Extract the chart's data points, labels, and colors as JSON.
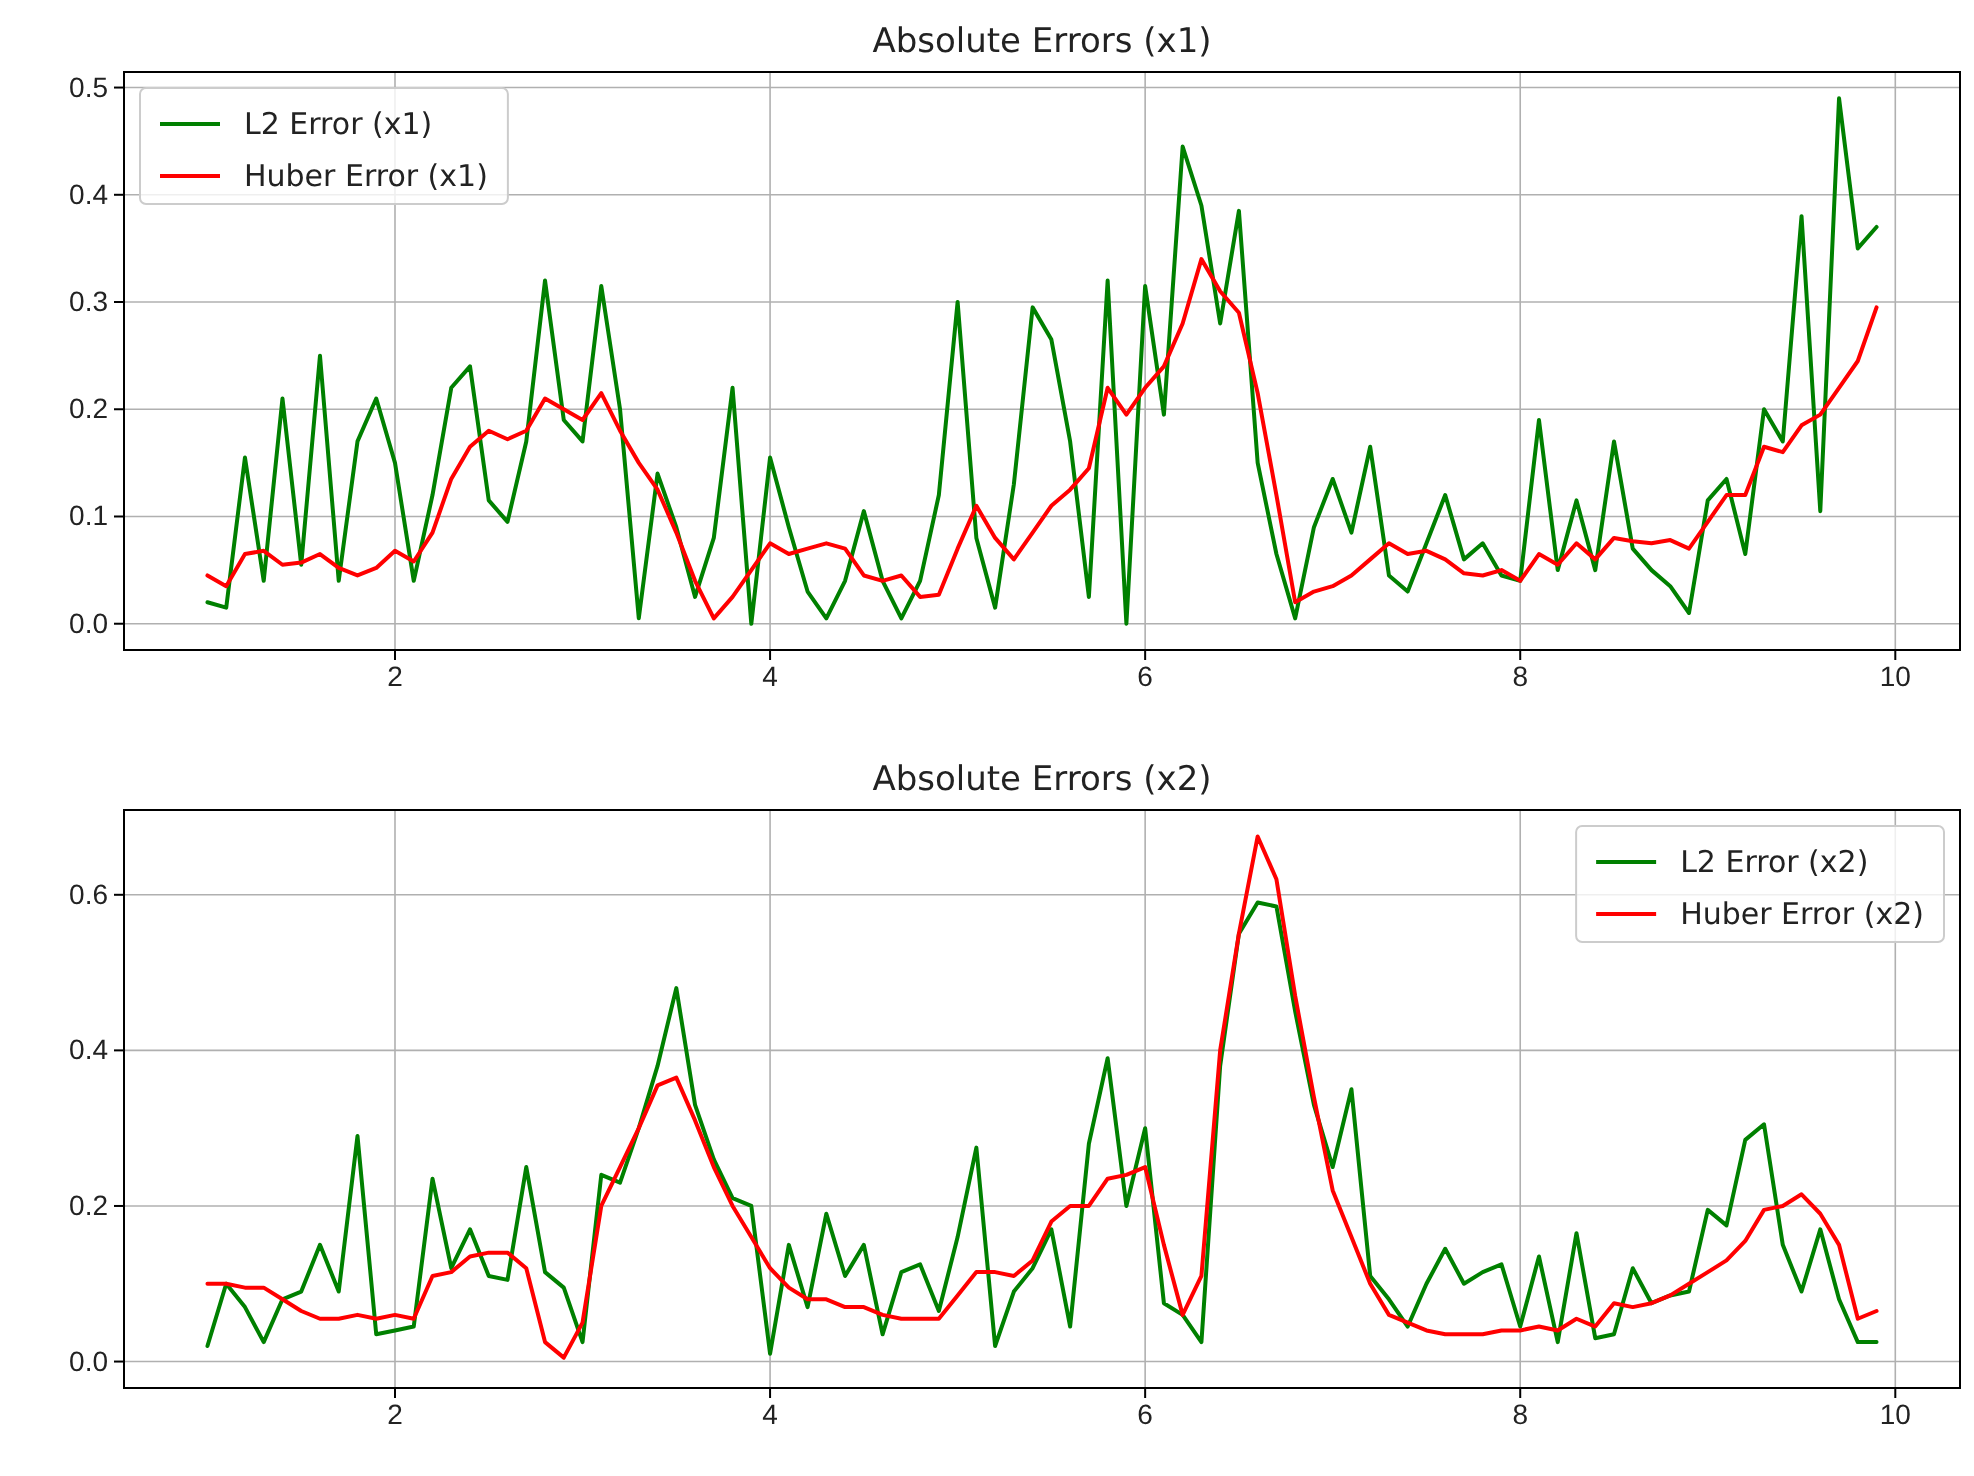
{
  "chart_data": [
    {
      "type": "line",
      "title": "Absolute Errors (x1)",
      "x": [
        1.0,
        1.1,
        1.2,
        1.3,
        1.4,
        1.5,
        1.6,
        1.7,
        1.8,
        1.9,
        2.0,
        2.1,
        2.2,
        2.3,
        2.4,
        2.5,
        2.6,
        2.7,
        2.8,
        2.9,
        3.0,
        3.1,
        3.2,
        3.3,
        3.4,
        3.5,
        3.6,
        3.7,
        3.8,
        3.9,
        4.0,
        4.1,
        4.2,
        4.3,
        4.4,
        4.5,
        4.6,
        4.7,
        4.8,
        4.9,
        5.0,
        5.1,
        5.2,
        5.3,
        5.4,
        5.5,
        5.6,
        5.7,
        5.8,
        5.9,
        6.0,
        6.1,
        6.2,
        6.3,
        6.4,
        6.5,
        6.6,
        6.7,
        6.8,
        6.9,
        7.0,
        7.1,
        7.2,
        7.3,
        7.4,
        7.5,
        7.6,
        7.7,
        7.8,
        7.9,
        8.0,
        8.1,
        8.2,
        8.3,
        8.4,
        8.5,
        8.6,
        8.7,
        8.8,
        8.9,
        9.0,
        9.1,
        9.2,
        9.3,
        9.4,
        9.5,
        9.6,
        9.7,
        9.8,
        9.9
      ],
      "series": [
        {
          "name": "L2 Error (x1)",
          "color": "#008000",
          "values": [
            0.02,
            0.015,
            0.155,
            0.04,
            0.21,
            0.055,
            0.25,
            0.04,
            0.17,
            0.21,
            0.15,
            0.04,
            0.12,
            0.22,
            0.24,
            0.115,
            0.095,
            0.17,
            0.32,
            0.19,
            0.17,
            0.315,
            0.2,
            0.005,
            0.14,
            0.09,
            0.025,
            0.08,
            0.22,
            0.0,
            0.155,
            0.09,
            0.03,
            0.005,
            0.04,
            0.105,
            0.04,
            0.005,
            0.04,
            0.12,
            0.3,
            0.08,
            0.015,
            0.13,
            0.295,
            0.265,
            0.17,
            0.025,
            0.32,
            0.0,
            0.315,
            0.195,
            0.445,
            0.39,
            0.28,
            0.385,
            0.15,
            0.065,
            0.005,
            0.09,
            0.135,
            0.085,
            0.165,
            0.045,
            0.03,
            0.075,
            0.12,
            0.06,
            0.075,
            0.045,
            0.04,
            0.19,
            0.05,
            0.115,
            0.05,
            0.17,
            0.07,
            0.05,
            0.035,
            0.01,
            0.115,
            0.135,
            0.065,
            0.2,
            0.17,
            0.38,
            0.105,
            0.49,
            0.35,
            0.37
          ]
        },
        {
          "name": "Huber Error (x1)",
          "color": "#ff0000",
          "values": [
            0.045,
            0.035,
            0.065,
            0.068,
            0.055,
            0.057,
            0.065,
            0.052,
            0.045,
            0.052,
            0.068,
            0.058,
            0.085,
            0.135,
            0.165,
            0.18,
            0.172,
            0.18,
            0.21,
            0.2,
            0.19,
            0.215,
            0.18,
            0.15,
            0.125,
            0.085,
            0.04,
            0.005,
            0.025,
            0.05,
            0.075,
            0.065,
            0.07,
            0.075,
            0.07,
            0.045,
            0.04,
            0.045,
            0.025,
            0.027,
            0.07,
            0.11,
            0.08,
            0.06,
            0.085,
            0.11,
            0.125,
            0.145,
            0.22,
            0.195,
            0.22,
            0.24,
            0.28,
            0.34,
            0.31,
            0.29,
            0.215,
            0.12,
            0.02,
            0.03,
            0.035,
            0.045,
            0.06,
            0.075,
            0.065,
            0.068,
            0.06,
            0.047,
            0.045,
            0.05,
            0.04,
            0.065,
            0.055,
            0.075,
            0.06,
            0.08,
            0.077,
            0.075,
            0.078,
            0.07,
            0.095,
            0.12,
            0.12,
            0.165,
            0.16,
            0.185,
            0.195,
            0.22,
            0.245,
            0.295
          ]
        }
      ],
      "xlim": [
        0.555,
        10.345
      ],
      "xticks": [
        2,
        4,
        6,
        8,
        10
      ],
      "ylim": [
        -0.0245,
        0.5145
      ],
      "yticks": [
        {
          "value": 0,
          "label": "0.0"
        },
        0.1,
        0.2,
        0.3,
        0.4,
        0.5
      ],
      "grid": true,
      "legend": "top left"
    },
    {
      "type": "line",
      "title": "Absolute Errors (x2)",
      "x": [
        1.0,
        1.1,
        1.2,
        1.3,
        1.4,
        1.5,
        1.6,
        1.7,
        1.8,
        1.9,
        2.0,
        2.1,
        2.2,
        2.3,
        2.4,
        2.5,
        2.6,
        2.7,
        2.8,
        2.9,
        3.0,
        3.1,
        3.2,
        3.3,
        3.4,
        3.5,
        3.6,
        3.7,
        3.8,
        3.9,
        4.0,
        4.1,
        4.2,
        4.3,
        4.4,
        4.5,
        4.6,
        4.7,
        4.8,
        4.9,
        5.0,
        5.1,
        5.2,
        5.3,
        5.4,
        5.5,
        5.6,
        5.7,
        5.8,
        5.9,
        6.0,
        6.1,
        6.2,
        6.3,
        6.4,
        6.5,
        6.6,
        6.7,
        6.8,
        6.9,
        7.0,
        7.1,
        7.2,
        7.3,
        7.4,
        7.5,
        7.6,
        7.7,
        7.8,
        7.9,
        8.0,
        8.1,
        8.2,
        8.3,
        8.4,
        8.5,
        8.6,
        8.7,
        8.8,
        8.9,
        9.0,
        9.1,
        9.2,
        9.3,
        9.4,
        9.5,
        9.6,
        9.7,
        9.8,
        9.9
      ],
      "series": [
        {
          "name": "L2 Error (x2)",
          "color": "#008000",
          "values": [
            0.02,
            0.1,
            0.07,
            0.025,
            0.08,
            0.09,
            0.15,
            0.09,
            0.29,
            0.035,
            0.04,
            0.045,
            0.235,
            0.12,
            0.17,
            0.11,
            0.105,
            0.25,
            0.115,
            0.095,
            0.025,
            0.24,
            0.23,
            0.3,
            0.38,
            0.48,
            0.33,
            0.26,
            0.21,
            0.2,
            0.01,
            0.15,
            0.07,
            0.19,
            0.11,
            0.15,
            0.035,
            0.115,
            0.125,
            0.065,
            0.16,
            0.275,
            0.02,
            0.09,
            0.12,
            0.17,
            0.045,
            0.28,
            0.39,
            0.2,
            0.3,
            0.075,
            0.06,
            0.025,
            0.38,
            0.55,
            0.59,
            0.585,
            0.45,
            0.33,
            0.25,
            0.35,
            0.11,
            0.08,
            0.045,
            0.1,
            0.145,
            0.1,
            0.115,
            0.125,
            0.045,
            0.135,
            0.025,
            0.165,
            0.03,
            0.035,
            0.12,
            0.075,
            0.085,
            0.09,
            0.195,
            0.175,
            0.285,
            0.305,
            0.15,
            0.09,
            0.17,
            0.08,
            0.025,
            0.025
          ]
        },
        {
          "name": "Huber Error (x2)",
          "color": "#ff0000",
          "values": [
            0.1,
            0.1,
            0.095,
            0.095,
            0.08,
            0.065,
            0.055,
            0.055,
            0.06,
            0.055,
            0.06,
            0.055,
            0.11,
            0.115,
            0.135,
            0.14,
            0.14,
            0.12,
            0.025,
            0.005,
            0.05,
            0.2,
            0.25,
            0.3,
            0.355,
            0.365,
            0.31,
            0.25,
            0.2,
            0.16,
            0.12,
            0.095,
            0.08,
            0.08,
            0.07,
            0.07,
            0.06,
            0.055,
            0.055,
            0.055,
            0.085,
            0.115,
            0.115,
            0.11,
            0.13,
            0.18,
            0.2,
            0.2,
            0.235,
            0.24,
            0.25,
            0.15,
            0.06,
            0.11,
            0.4,
            0.55,
            0.675,
            0.62,
            0.47,
            0.34,
            0.22,
            0.16,
            0.1,
            0.06,
            0.05,
            0.04,
            0.035,
            0.035,
            0.035,
            0.04,
            0.04,
            0.045,
            0.04,
            0.055,
            0.045,
            0.075,
            0.07,
            0.075,
            0.085,
            0.1,
            0.115,
            0.13,
            0.155,
            0.195,
            0.2,
            0.215,
            0.19,
            0.15,
            0.055,
            0.065
          ]
        }
      ],
      "xlim": [
        0.555,
        10.345
      ],
      "xticks": [
        2,
        4,
        6,
        8,
        10
      ],
      "ylim": [
        -0.034,
        0.709
      ],
      "yticks": [
        {
          "value": 0,
          "label": "0.0"
        },
        {
          "value": 0.2,
          "label": "0.2"
        },
        {
          "value": 0.4,
          "label": "0.4"
        },
        {
          "value": 0.6,
          "label": "0.6"
        }
      ],
      "grid": true,
      "legend": "top right"
    }
  ]
}
